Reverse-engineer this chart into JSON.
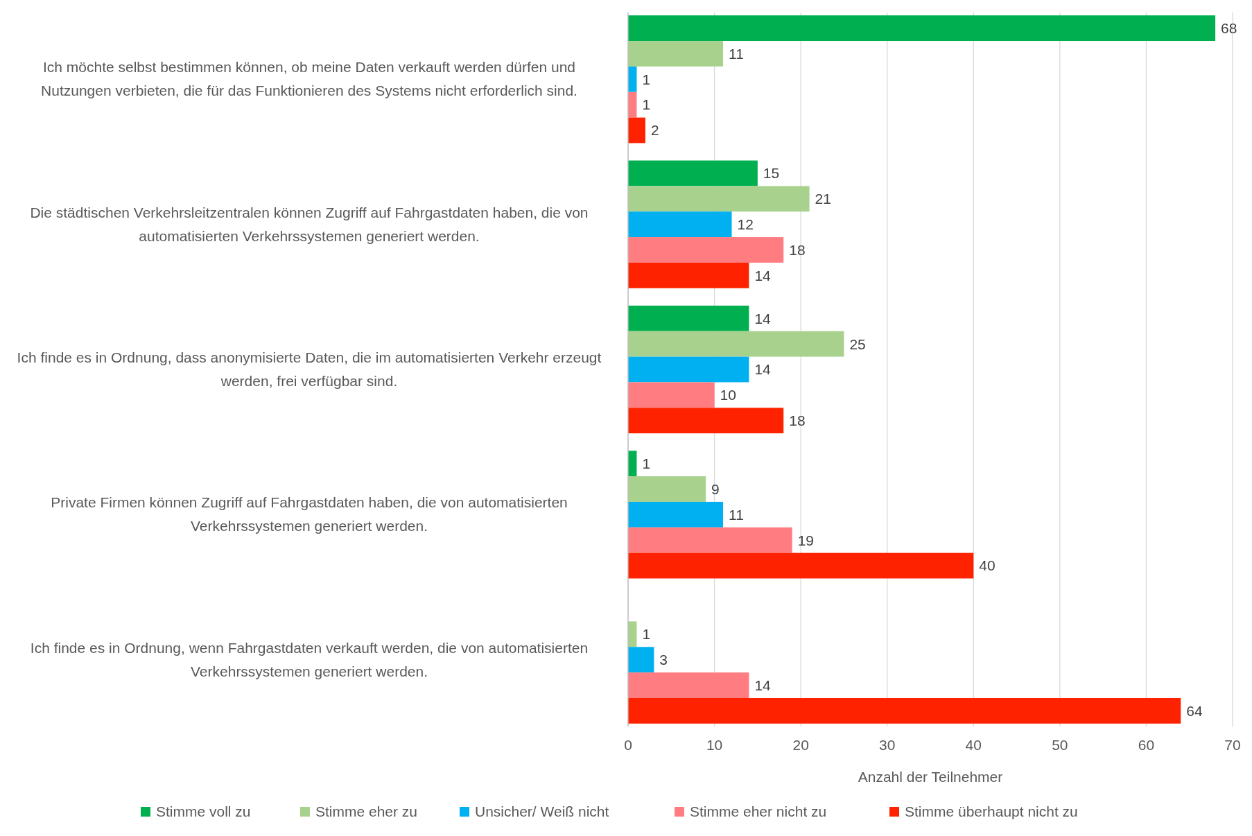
{
  "chart_data": {
    "type": "bar",
    "orientation": "horizontal",
    "xlabel": "Anzahl der Teilnehmer",
    "categories": [
      "Ich möchte selbst bestimmen können, ob meine Daten verkauft werden dürfen und Nutzungen verbieten, die für das Funktionieren des Systems nicht erforderlich sind.",
      "Die städtischen Verkehrsleitzentralen können Zugriff auf Fahrgastdaten haben, die von automatisierten Verkehrssystemen generiert werden.",
      "Ich finde es in Ordnung, dass anonymisierte Daten, die im automatisierten Verkehr erzeugt werden, frei verfügbar sind.",
      "Private Firmen können Zugriff auf Fahrgastdaten haben, die von automatisierten Verkehrssystemen generiert werden.",
      "Ich finde es in Ordnung, wenn Fahrgastdaten verkauft werden, die von automatisierten Verkehrssystemen generiert werden."
    ],
    "series": [
      {
        "name": "Stimme voll zu",
        "color": "#00b050",
        "values": [
          68,
          15,
          14,
          1,
          null
        ]
      },
      {
        "name": "Stimme eher zu",
        "color": "#a9d18e",
        "values": [
          11,
          21,
          25,
          9,
          1
        ]
      },
      {
        "name": "Unsicher/ Weiß nicht",
        "color": "#00b0f0",
        "values": [
          1,
          12,
          14,
          11,
          3
        ]
      },
      {
        "name": "Stimme eher nicht zu",
        "color": "#ff7c80",
        "values": [
          1,
          18,
          10,
          19,
          14
        ]
      },
      {
        "name": "Stimme überhaupt nicht zu",
        "color": "#ff2200",
        "values": [
          2,
          14,
          18,
          40,
          64
        ]
      }
    ],
    "xlim": [
      0,
      70
    ],
    "xticks": [
      0,
      10,
      20,
      30,
      40,
      50,
      60,
      70
    ],
    "grid": "x",
    "legend": "bottom",
    "data_labels": true
  }
}
